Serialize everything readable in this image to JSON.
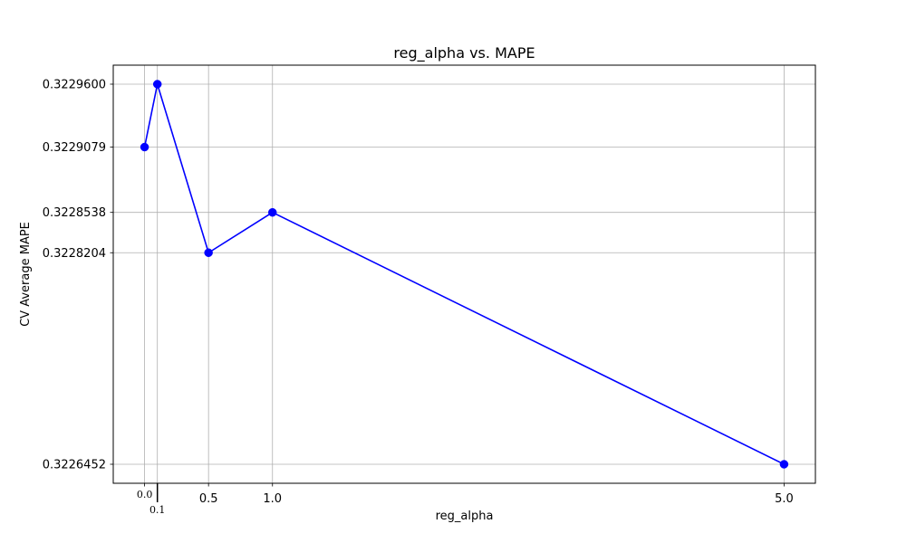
{
  "chart_data": {
    "type": "line",
    "title": "reg_alpha vs. MAPE",
    "xlabel": "reg_alpha",
    "ylabel": "CV Average MAPE",
    "x": [
      0.0,
      0.1,
      0.5,
      1.0,
      5.0
    ],
    "series": [
      {
        "values": [
          0.3229079,
          0.32296,
          0.3228204,
          0.3228538,
          0.3226452
        ]
      }
    ],
    "x_ticks": [
      0.0,
      0.1,
      0.5,
      1.0,
      5.0
    ],
    "x_tick_labels": [
      "0.0",
      "0.1",
      "0.5",
      "1.0",
      "5.0"
    ],
    "y_ticks": [
      0.3226452,
      0.3228204,
      0.3228538,
      0.3229079,
      0.32296
    ],
    "y_tick_labels": [
      "0.3226452",
      "0.3228204",
      "0.3228538",
      "0.3229079",
      "0.3229600"
    ],
    "xlim": [
      -0.245,
      5.245
    ],
    "ylim": [
      0.32262946,
      0.32297574
    ],
    "grid": true,
    "line_color": "#0000ff",
    "marker_color": "#0000ff"
  }
}
